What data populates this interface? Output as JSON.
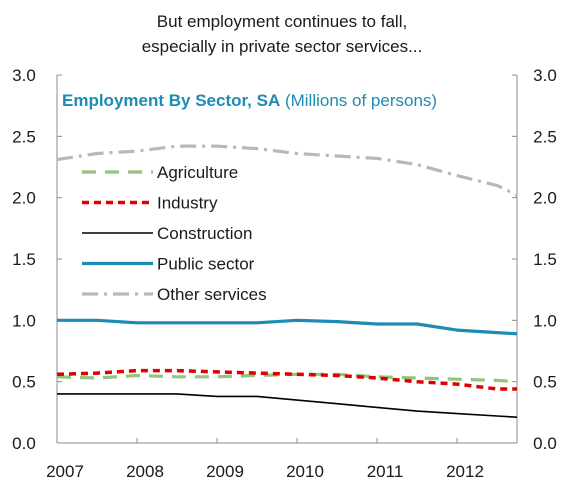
{
  "chart_data": {
    "type": "line",
    "title_lines": [
      "But employment continues to fall,",
      "especially in private sector services..."
    ],
    "inner_title": {
      "bold": "Employment By Sector, SA",
      "regular": " (Millions of persons)",
      "color": "#1d8bb3"
    },
    "x_ticks": [
      "2007",
      "2008",
      "2009",
      "2010",
      "2011",
      "2012"
    ],
    "xlim": [
      2007.0,
      2012.75
    ],
    "y_ticks": [
      "0.0",
      "0.5",
      "1.0",
      "1.5",
      "2.0",
      "2.5",
      "3.0"
    ],
    "ylim": [
      0,
      3
    ],
    "legend_position": "left",
    "x": [
      2007.0,
      2007.5,
      2008.0,
      2008.5,
      2009.0,
      2009.5,
      2010.0,
      2010.5,
      2011.0,
      2011.5,
      2012.0,
      2012.5,
      2012.75
    ],
    "series": [
      {
        "name": "Agriculture",
        "color": "#93c47d",
        "dash": "14,9",
        "width": 3.2,
        "values": [
          0.54,
          0.53,
          0.55,
          0.54,
          0.54,
          0.55,
          0.56,
          0.56,
          0.54,
          0.53,
          0.52,
          0.51,
          0.5
        ]
      },
      {
        "name": "Industry",
        "color": "#e00000",
        "dash": "7,5",
        "width": 3.5,
        "values": [
          0.56,
          0.57,
          0.59,
          0.59,
          0.58,
          0.57,
          0.56,
          0.55,
          0.53,
          0.5,
          0.48,
          0.44,
          0.44
        ]
      },
      {
        "name": "Construction",
        "color": "#000000",
        "dash": "",
        "width": 1.6,
        "values": [
          0.4,
          0.4,
          0.4,
          0.4,
          0.38,
          0.38,
          0.35,
          0.32,
          0.29,
          0.26,
          0.24,
          0.22,
          0.21
        ]
      },
      {
        "name": "Public sector",
        "color": "#1d8bb3",
        "dash": "",
        "width": 3.2,
        "values": [
          1.0,
          1.0,
          0.98,
          0.98,
          0.98,
          0.98,
          1.0,
          0.99,
          0.97,
          0.97,
          0.92,
          0.9,
          0.89
        ]
      },
      {
        "name": "Other services",
        "color": "#b8b8b8",
        "dash": "16,6,3,6",
        "width": 3.2,
        "values": [
          2.31,
          2.36,
          2.38,
          2.42,
          2.42,
          2.4,
          2.36,
          2.34,
          2.32,
          2.27,
          2.18,
          2.1,
          2.02
        ]
      }
    ]
  }
}
